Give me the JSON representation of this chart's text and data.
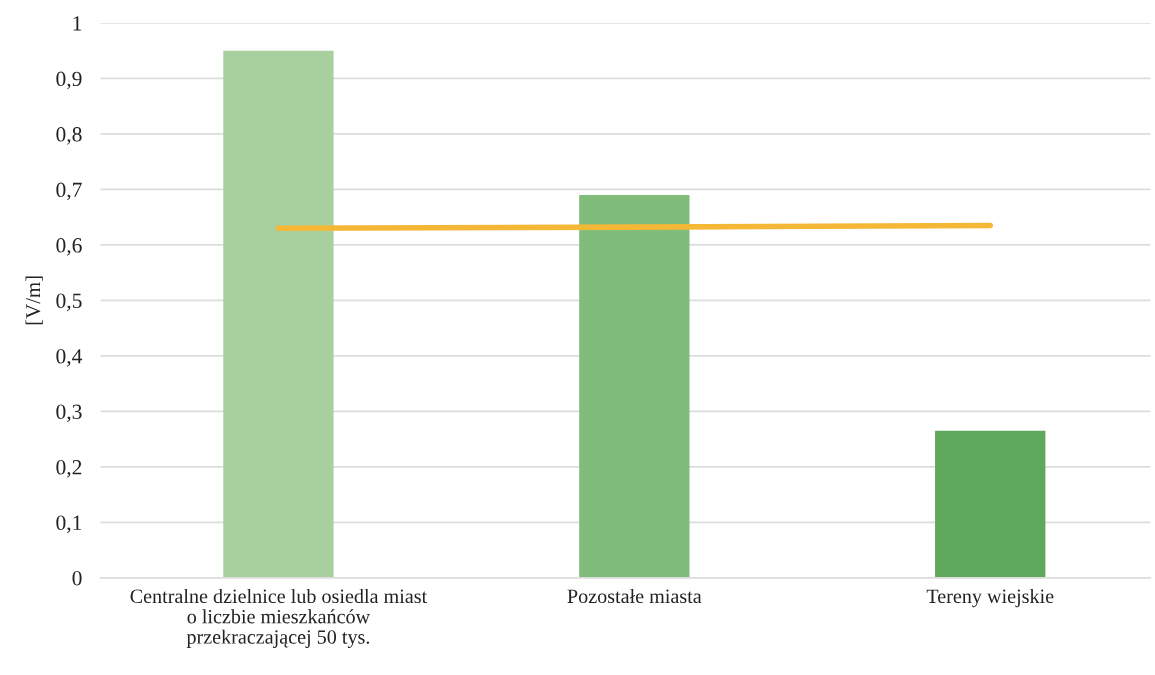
{
  "chart_data": {
    "type": "bar",
    "ylabel": "[V/m]",
    "categories": [
      "Centralne dzielnice lub osiedla miast\no liczbie mieszkańców\nprzekraczającej 50 tys.",
      "Pozostałe miasta",
      "Tereny wiejskie"
    ],
    "series": [
      {
        "colors": [
          "#a8d09f",
          "#80bd7a",
          "#5ea85c"
        ],
        "values": [
          0.95,
          0.69,
          0.265
        ]
      },
      {
        "type": "line",
        "color": "#f5b836",
        "values": [
          0.63,
          0.632,
          0.635
        ]
      }
    ],
    "ylim": [
      0,
      1
    ],
    "yticks": [
      0,
      {
        "value": 0.1,
        "label": "0,1"
      },
      {
        "value": 0.2,
        "label": "0,2"
      },
      {
        "value": 0.3,
        "label": "0,3"
      },
      {
        "value": 0.4,
        "label": "0,4"
      },
      {
        "value": 0.5,
        "label": "0,5"
      },
      {
        "value": 0.6,
        "label": "0,6"
      },
      {
        "value": 0.7,
        "label": "0,7"
      },
      {
        "value": 0.8,
        "label": "0,8"
      },
      {
        "value": 0.9,
        "label": "0,9"
      },
      1
    ],
    "grid": "y"
  }
}
